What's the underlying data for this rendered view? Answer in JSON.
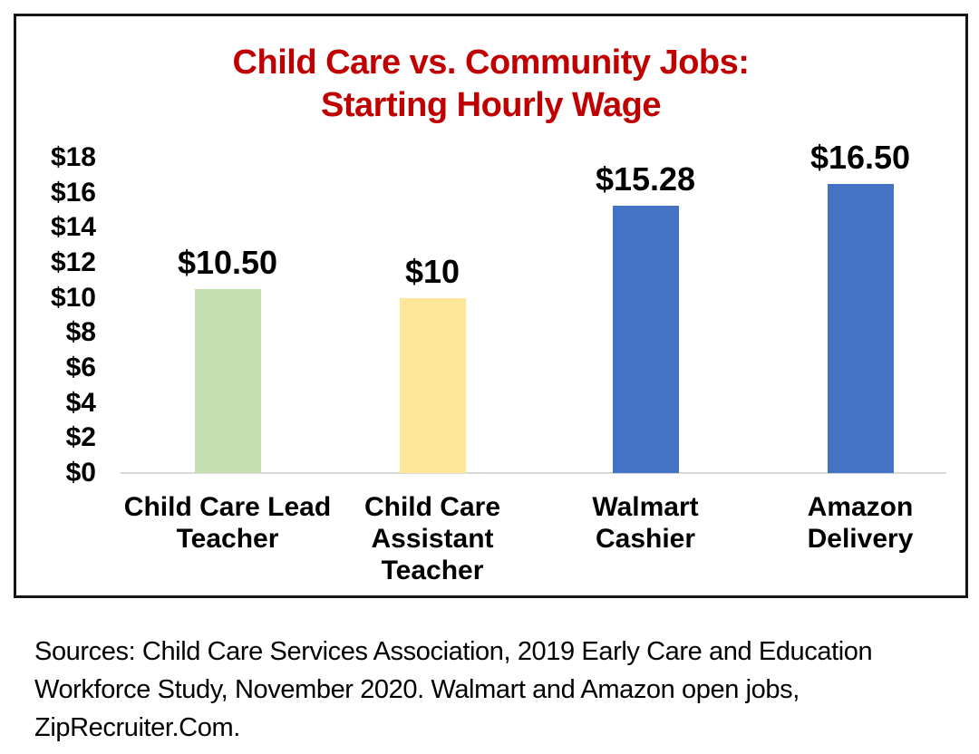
{
  "chart_data": {
    "type": "bar",
    "title_lines": [
      "Child Care vs. Community Jobs:",
      "Starting Hourly Wage"
    ],
    "title_color": "#C00000",
    "categories": [
      "Child Care Lead\nTeacher",
      "Child Care\nAssistant\nTeacher",
      "Walmart\nCashier",
      "Amazon\nDelivery"
    ],
    "values": [
      10.5,
      10,
      15.28,
      16.5
    ],
    "bar_labels": [
      "$10.50",
      "$10",
      "$15.28",
      "$16.50"
    ],
    "bar_colors": [
      "#C6E0B4",
      "#FFE699",
      "#4472C4",
      "#4472C4"
    ],
    "y_tick_labels": [
      "$18",
      "$16",
      "$14",
      "$12",
      "$10",
      "$8",
      "$6",
      "$4",
      "$2",
      "$0"
    ],
    "y_tick_values": [
      18,
      16,
      14,
      12,
      10,
      8,
      6,
      4,
      2,
      0
    ],
    "ylim": [
      0,
      18
    ],
    "xlabel": "",
    "ylabel": "",
    "legend": "none",
    "grid": "off",
    "baseline_color": "#D9D9D9",
    "frame_border_color": "#161616"
  },
  "source": {
    "lines": [
      "Sources: Child Care Services Association, 2019 Early Care and Education",
      "Workforce Study, November 2020. Walmart and Amazon open jobs,",
      "ZipRecruiter.Com."
    ]
  }
}
